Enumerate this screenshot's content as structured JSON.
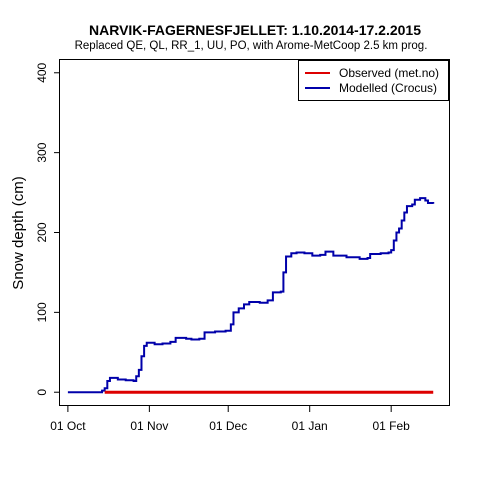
{
  "chart_data": {
    "type": "line",
    "title": "NARVIK-FAGERNESFJELLET: 1.10.2014-17.2.2015",
    "subtitle": "Replaced QE, QL, RR_1, UU, PO,  with Arome-MetCoop 2.5 km prog.",
    "xlabel": "",
    "ylabel": "Snow depth (cm)",
    "xlim": [
      "2014-09-28",
      "2015-02-23"
    ],
    "ylim": [
      0,
      400
    ],
    "yticks": [
      0,
      100,
      200,
      300,
      400
    ],
    "xticks": [
      {
        "date": "2014-10-01",
        "label": "01 Oct"
      },
      {
        "date": "2014-11-01",
        "label": "01 Nov"
      },
      {
        "date": "2014-12-01",
        "label": "01 Dec"
      },
      {
        "date": "2015-01-01",
        "label": "01 Jan"
      },
      {
        "date": "2015-02-01",
        "label": "01 Feb"
      }
    ],
    "grid": false,
    "legend_position": "top-right",
    "series": [
      {
        "name": "Observed (met.no)",
        "color": "#dd0000",
        "points": [
          [
            "2014-10-15",
            0
          ],
          [
            "2015-02-17",
            0
          ]
        ]
      },
      {
        "name": "Modelled (Crocus)",
        "color": "#0000aa",
        "points": [
          [
            "2014-10-01",
            0
          ],
          [
            "2014-10-13",
            0
          ],
          [
            "2014-10-14",
            2
          ],
          [
            "2014-10-15",
            5
          ],
          [
            "2014-10-16",
            14
          ],
          [
            "2014-10-17",
            18
          ],
          [
            "2014-10-20",
            16
          ],
          [
            "2014-10-23",
            15
          ],
          [
            "2014-10-26",
            14
          ],
          [
            "2014-10-27",
            20
          ],
          [
            "2014-10-28",
            28
          ],
          [
            "2014-10-29",
            45
          ],
          [
            "2014-10-30",
            58
          ],
          [
            "2014-10-31",
            62
          ],
          [
            "2014-11-03",
            60
          ],
          [
            "2014-11-06",
            61
          ],
          [
            "2014-11-09",
            63
          ],
          [
            "2014-11-11",
            68
          ],
          [
            "2014-11-15",
            67
          ],
          [
            "2014-11-17",
            66
          ],
          [
            "2014-11-20",
            67
          ],
          [
            "2014-11-22",
            75
          ],
          [
            "2014-11-26",
            76
          ],
          [
            "2014-11-30",
            77
          ],
          [
            "2014-12-02",
            85
          ],
          [
            "2014-12-03",
            100
          ],
          [
            "2014-12-05",
            105
          ],
          [
            "2014-12-07",
            110
          ],
          [
            "2014-12-09",
            113
          ],
          [
            "2014-12-13",
            112
          ],
          [
            "2014-12-16",
            115
          ],
          [
            "2014-12-18",
            125
          ],
          [
            "2014-12-21",
            126
          ],
          [
            "2014-12-22",
            150
          ],
          [
            "2014-12-23",
            170
          ],
          [
            "2014-12-25",
            174
          ],
          [
            "2014-12-27",
            175
          ],
          [
            "2014-12-30",
            174
          ],
          [
            "2015-01-02",
            171
          ],
          [
            "2015-01-05",
            172
          ],
          [
            "2015-01-07",
            176
          ],
          [
            "2015-01-10",
            171
          ],
          [
            "2015-01-15",
            169
          ],
          [
            "2015-01-20",
            167
          ],
          [
            "2015-01-23",
            168
          ],
          [
            "2015-01-24",
            173
          ],
          [
            "2015-01-28",
            174
          ],
          [
            "2015-01-31",
            175
          ],
          [
            "2015-02-01",
            178
          ],
          [
            "2015-02-02",
            190
          ],
          [
            "2015-02-03",
            200
          ],
          [
            "2015-02-04",
            205
          ],
          [
            "2015-02-05",
            215
          ],
          [
            "2015-02-06",
            225
          ],
          [
            "2015-02-07",
            233
          ],
          [
            "2015-02-09",
            235
          ],
          [
            "2015-02-10",
            241
          ],
          [
            "2015-02-12",
            243
          ],
          [
            "2015-02-14",
            240
          ],
          [
            "2015-02-15",
            237
          ],
          [
            "2015-02-17",
            236
          ]
        ]
      }
    ]
  }
}
